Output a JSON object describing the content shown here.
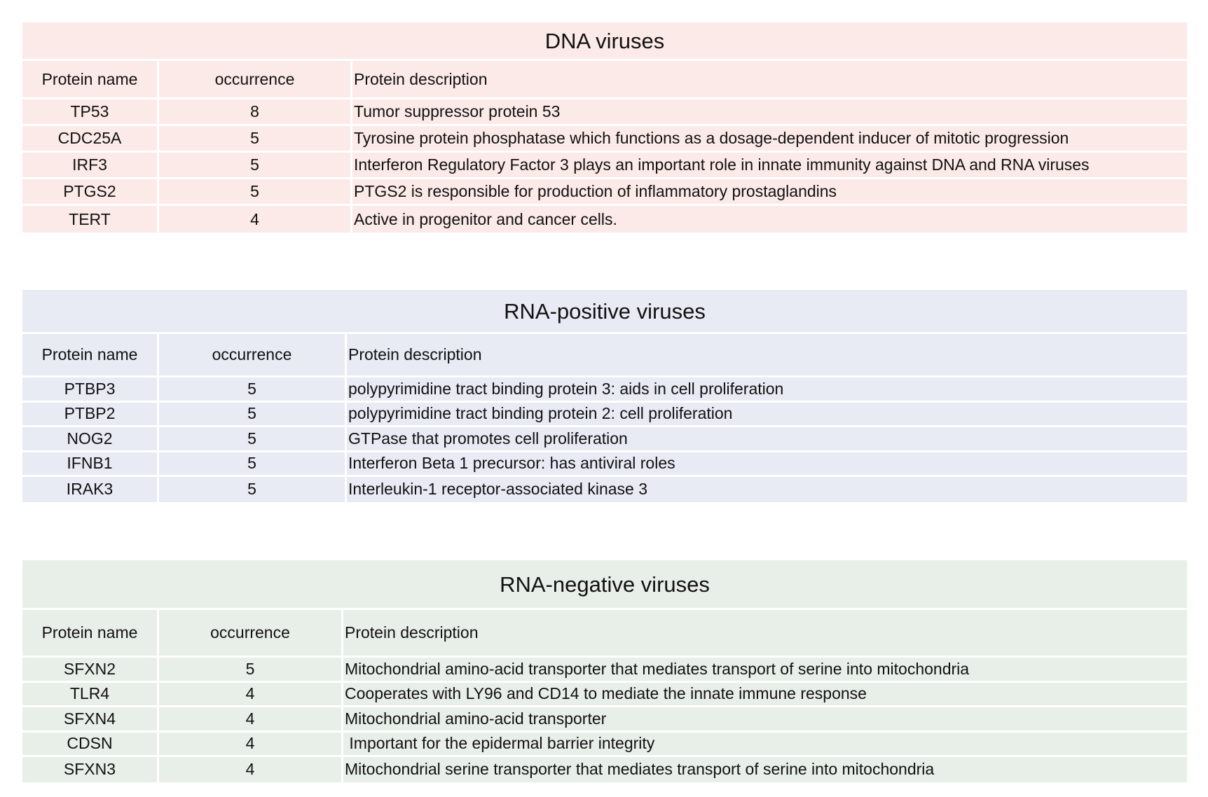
{
  "tables": [
    {
      "title": "DNA viruses",
      "headers": [
        "Protein name",
        "occurrence",
        "Protein description"
      ],
      "rows": [
        [
          "TP53",
          "8",
          "Tumor suppressor protein 53"
        ],
        [
          "CDC25A",
          "5",
          "Tyrosine protein phosphatase which functions as a dosage-dependent inducer of mitotic progression"
        ],
        [
          "IRF3",
          "5",
          "Interferon Regulatory Factor 3 plays an important role in innate immunity against DNA and RNA viruses"
        ],
        [
          "PTGS2",
          "5",
          "PTGS2 is responsible for production of inflammatory prostaglandins"
        ],
        [
          "TERT",
          "4",
          "Active in progenitor and cancer cells."
        ]
      ],
      "color": "#fbeae7"
    },
    {
      "title": "RNA-positive viruses",
      "headers": [
        "Protein name",
        "occurrence",
        "Protein description"
      ],
      "rows": [
        [
          "PTBP3",
          "5",
          "polypyrimidine tract binding protein 3: aids in cell proliferation"
        ],
        [
          "PTBP2",
          "5",
          "polypyrimidine tract binding protein 2: cell proliferation"
        ],
        [
          "NOG2",
          "5",
          "GTPase that promotes cell proliferation"
        ],
        [
          "IFNB1",
          "5",
          "Interferon Beta 1 precursor: has antiviral roles"
        ],
        [
          "IRAK3",
          "5",
          "Interleukin-1 receptor-associated kinase 3"
        ]
      ],
      "color": "#e8eaf4"
    },
    {
      "title": "RNA-negative viruses",
      "headers": [
        "Protein name",
        "occurrence",
        "Protein description"
      ],
      "rows": [
        [
          "SFXN2",
          "5",
          "Mitochondrial amino-acid transporter that mediates transport of serine into mitochondria"
        ],
        [
          "TLR4",
          "4",
          "Cooperates with LY96 and CD14 to mediate the innate immune response"
        ],
        [
          "SFXN4",
          "4",
          "Mitochondrial amino-acid transporter"
        ],
        [
          "CDSN",
          "4",
          " Important for the epidermal barrier integrity"
        ],
        [
          "SFXN3",
          "4",
          "Mitochondrial serine transporter that mediates transport of serine into mitochondria"
        ]
      ],
      "color": "#e8eee8"
    }
  ]
}
